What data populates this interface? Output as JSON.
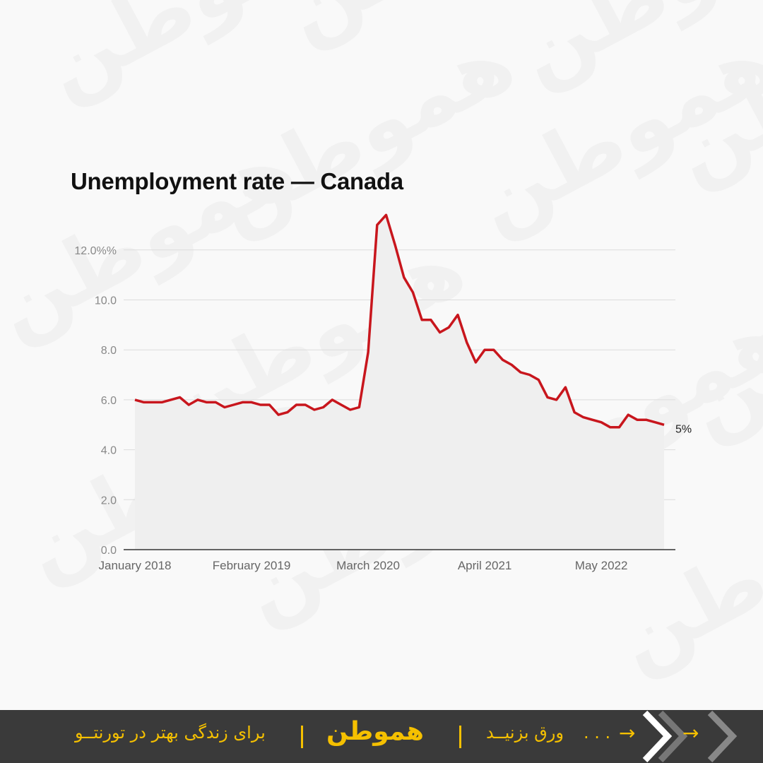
{
  "footer": {
    "tagline": "برای زندگی بهتر در تورنتــو",
    "brand": "هموطن",
    "swipe_text": "ورق بزنیــد",
    "dots": ". . .",
    "arrow": "→",
    "watermark_text": "هموطن",
    "accent_color": "#f5c000",
    "background_color": "#3a3a3a"
  },
  "chart_data": {
    "type": "area",
    "title": "Unemployment rate — Canada",
    "xlabel": "",
    "ylabel": "",
    "ylim": [
      0,
      13.4
    ],
    "grid": true,
    "y_ticks": [
      {
        "value": 0,
        "label": "0.0"
      },
      {
        "value": 2,
        "label": "2.0"
      },
      {
        "value": 4,
        "label": "4.0"
      },
      {
        "value": 6,
        "label": "6.0"
      },
      {
        "value": 8,
        "label": "8.0"
      },
      {
        "value": 10,
        "label": "10.0"
      },
      {
        "value": 12,
        "label": "12.0%%"
      }
    ],
    "x_ticks": [
      {
        "index": 0,
        "label": "January 2018"
      },
      {
        "index": 13,
        "label": "February 2019"
      },
      {
        "index": 26,
        "label": "March 2020"
      },
      {
        "index": 39,
        "label": "April 2021"
      },
      {
        "index": 52,
        "label": "May 2022"
      }
    ],
    "end_label": "5%",
    "line_color": "#c8161d",
    "fill_color": "#efefef",
    "series": [
      {
        "values": [
          6.0,
          5.9,
          5.9,
          5.9,
          6.0,
          6.1,
          5.8,
          6.0,
          5.9,
          5.9,
          5.7,
          5.8,
          5.9,
          5.9,
          5.8,
          5.8,
          5.4,
          5.5,
          5.8,
          5.8,
          5.6,
          5.7,
          6.0,
          5.8,
          5.6,
          5.7,
          7.9,
          13.0,
          13.4,
          12.2,
          10.9,
          10.3,
          9.2,
          9.2,
          8.7,
          8.9,
          9.4,
          8.3,
          7.5,
          8.0,
          8.0,
          7.6,
          7.4,
          7.1,
          7.0,
          6.8,
          6.1,
          6.0,
          6.5,
          5.5,
          5.3,
          5.2,
          5.1,
          4.9,
          4.9,
          5.4,
          5.2,
          5.2,
          5.1,
          5.0
        ]
      }
    ]
  }
}
